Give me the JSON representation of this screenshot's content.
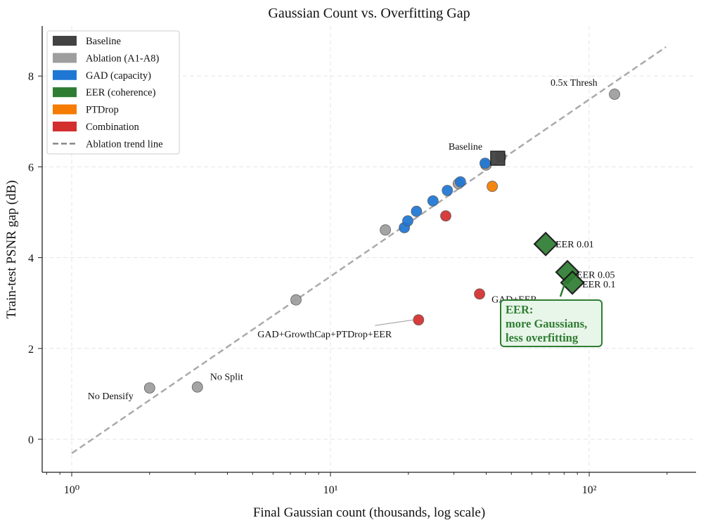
{
  "chart_data": {
    "type": "scatter",
    "title": "Gaussian Count vs. Overfitting Gap",
    "xlabel": "Final Gaussian count (thousands, log scale)",
    "ylabel": "Train-test PSNR gap (dB)",
    "xscale": "log",
    "xlim": [
      0.77,
      259
    ],
    "ylim": [
      -0.73,
      9.1
    ],
    "xticks": [
      1,
      10,
      100
    ],
    "xtick_labels": [
      "10⁰",
      "10¹",
      "10²"
    ],
    "yticks": [
      0,
      2,
      4,
      6,
      8
    ],
    "ytick_labels": [
      "0",
      "2",
      "4",
      "6",
      "8"
    ],
    "grid": true,
    "legend_position": "top-left",
    "series": [
      {
        "name": "Ablation (A1-A8)",
        "color": "#9e9e9e",
        "marker": "circle",
        "x": [
          2.0,
          3.06,
          7.36,
          16.3,
          31.2,
          39.9,
          45.5,
          125.3
        ],
        "y": [
          1.13,
          1.15,
          3.07,
          4.61,
          5.63,
          6.04,
          6.22,
          7.6
        ]
      },
      {
        "name": "GAD (capacity)",
        "color": "#1f77d4",
        "marker": "circle",
        "x": [
          19.3,
          19.9,
          21.5,
          24.9,
          28.3,
          31.8,
          39.6
        ],
        "y": [
          4.66,
          4.81,
          5.02,
          5.25,
          5.48,
          5.67,
          6.08
        ]
      },
      {
        "name": "PTDrop",
        "color": "#f57c00",
        "marker": "circle",
        "x": [
          42.2
        ],
        "y": [
          5.57
        ]
      },
      {
        "name": "Combination",
        "color": "#d32f2f",
        "marker": "circle",
        "x": [
          27.9,
          37.7,
          21.9
        ],
        "y": [
          4.92,
          3.2,
          2.63
        ]
      },
      {
        "name": "Baseline",
        "color": "#424242",
        "marker": "square",
        "x": [
          44.3
        ],
        "y": [
          6.19
        ]
      },
      {
        "name": "EER (coherence)",
        "color": "#2e7d32",
        "marker": "diamond",
        "x": [
          67.9,
          82.4,
          86.1
        ],
        "y": [
          4.3,
          3.68,
          3.45
        ]
      }
    ],
    "trend_line": {
      "name": "Ablation trend line",
      "color": "#aaaaaa",
      "x": [
        1,
        198
      ],
      "y": [
        -0.31,
        8.64
      ]
    },
    "legend": [
      {
        "label": "Baseline",
        "color": "#424242",
        "kind": "patch"
      },
      {
        "label": "Ablation (A1-A8)",
        "color": "#9e9e9e",
        "kind": "patch"
      },
      {
        "label": "GAD (capacity)",
        "color": "#1f77d4",
        "kind": "patch"
      },
      {
        "label": "EER (coherence)",
        "color": "#2e7d32",
        "kind": "patch"
      },
      {
        "label": "PTDrop",
        "color": "#f57c00",
        "kind": "patch"
      },
      {
        "label": "Combination",
        "color": "#d32f2f",
        "kind": "patch"
      },
      {
        "label": "Ablation trend line",
        "color": "#888888",
        "kind": "dashed"
      }
    ],
    "annotations": [
      {
        "text": "0.5x Thresh",
        "x": 125.3,
        "y": 7.6
      },
      {
        "text": "Baseline",
        "x": 44.3,
        "y": 6.19
      },
      {
        "text": "EER 0.01",
        "x": 67.9,
        "y": 4.3
      },
      {
        "text": "EER 0.05",
        "x": 82.4,
        "y": 3.68
      },
      {
        "text": "EER 0.1",
        "x": 86.1,
        "y": 3.45
      },
      {
        "text": "GAD+EER",
        "x": 37.7,
        "y": 3.2
      },
      {
        "text": "GAD+GrowthCap+PTDrop+EER",
        "x": 21.9,
        "y": 2.63
      },
      {
        "text": "No Split",
        "x": 3.06,
        "y": 1.15
      },
      {
        "text": "No Densify",
        "x": 2.0,
        "y": 1.13
      }
    ],
    "callout": {
      "lines": [
        "EER:",
        "more Gaussians,",
        "less overfitting"
      ],
      "color": "#2e7d32",
      "fill": "#e8f5e9"
    }
  }
}
